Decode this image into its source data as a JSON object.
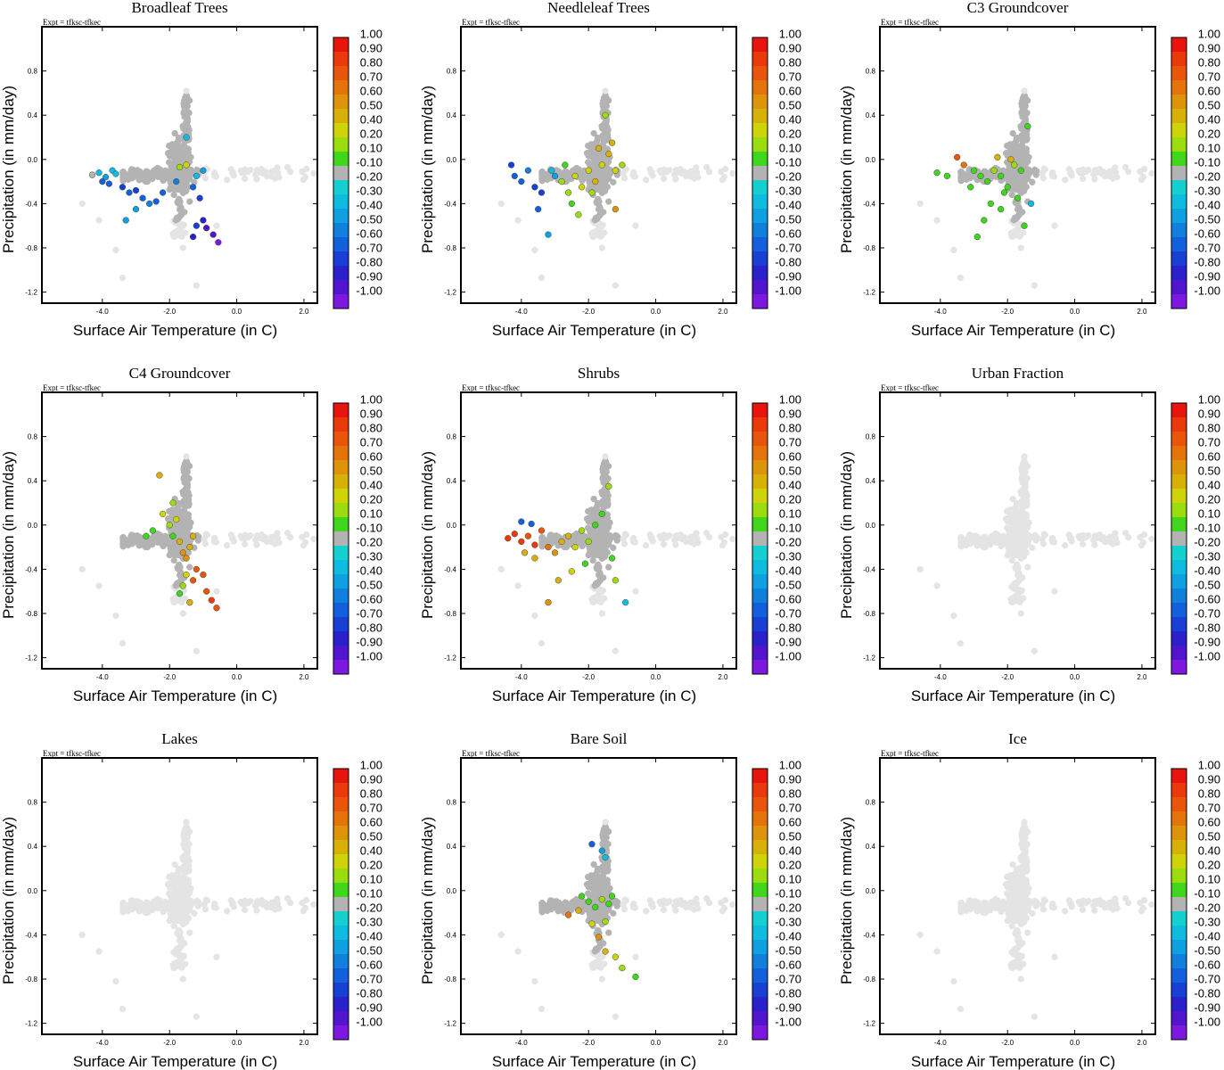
{
  "figure": {
    "expt_label": "Expt = tfksc-tfkec",
    "xlabel": "Surface Air Temperature (in C)",
    "ylabel": "Precipitation (in mm/day)",
    "x_ticks": [
      "-4.0",
      "-2.0",
      "0.0",
      "2.0"
    ],
    "y_ticks": [
      "0.8",
      "0.4",
      "0.0",
      "-0.4",
      "-0.8",
      "-1.2"
    ]
  },
  "colorbar": {
    "labels": [
      "1.00",
      "0.90",
      "0.80",
      "0.70",
      "0.60",
      "0.50",
      "0.40",
      "0.20",
      "0.10",
      "-0.10",
      "-0.20",
      "-0.30",
      "-0.40",
      "-0.50",
      "-0.60",
      "-0.70",
      "-0.80",
      "-0.90",
      "-1.00"
    ],
    "colors": [
      "#e8150f",
      "#ea3a0c",
      "#e9560b",
      "#e4740a",
      "#dd930a",
      "#d7b008",
      "#cfd40a",
      "#9bdc0e",
      "#3fd61c",
      "#b3b3b3",
      "#15d0d0",
      "#10bbe0",
      "#0ea0e0",
      "#1180dc",
      "#1360dc",
      "#1840d4",
      "#2a20cc",
      "#5015cc",
      "#7c18e0"
    ],
    "grey": "#b3b3b3",
    "light_grey": "#e4e4e4"
  },
  "chart_data": [
    {
      "type": "scatter",
      "title": "Broadleaf Trees",
      "xlim": [
        -5.8,
        2.4
      ],
      "ylim": [
        -1.3,
        1.2
      ],
      "colored_points": [
        {
          "x": -4.3,
          "y": -0.14,
          "c": 0.0
        },
        {
          "x": -4.1,
          "y": -0.12,
          "c": -0.2
        },
        {
          "x": -3.9,
          "y": -0.16,
          "c": -0.3
        },
        {
          "x": -3.7,
          "y": -0.1,
          "c": -0.2
        },
        {
          "x": -3.6,
          "y": -0.13,
          "c": -0.25
        },
        {
          "x": -4.0,
          "y": -0.2,
          "c": -0.5
        },
        {
          "x": -3.8,
          "y": -0.22,
          "c": -0.6
        },
        {
          "x": -3.4,
          "y": -0.25,
          "c": -0.7
        },
        {
          "x": -3.2,
          "y": -0.3,
          "c": -0.6
        },
        {
          "x": -3.0,
          "y": -0.28,
          "c": -0.7
        },
        {
          "x": -2.8,
          "y": -0.35,
          "c": -0.5
        },
        {
          "x": -3.0,
          "y": -0.45,
          "c": -0.3
        },
        {
          "x": -3.3,
          "y": -0.55,
          "c": -0.3
        },
        {
          "x": -2.6,
          "y": -0.4,
          "c": -0.4
        },
        {
          "x": -1.7,
          "y": -0.07,
          "c": 0.2
        },
        {
          "x": -1.5,
          "y": -0.05,
          "c": 0.3
        },
        {
          "x": -1.3,
          "y": -0.25,
          "c": -0.6
        },
        {
          "x": -1.1,
          "y": -0.35,
          "c": -0.7
        },
        {
          "x": -1.0,
          "y": -0.55,
          "c": -0.8
        },
        {
          "x": -0.9,
          "y": -0.62,
          "c": -0.85
        },
        {
          "x": -0.7,
          "y": -0.68,
          "c": -0.9
        },
        {
          "x": -0.55,
          "y": -0.75,
          "c": -0.95
        },
        {
          "x": -1.3,
          "y": -0.7,
          "c": -0.75
        },
        {
          "x": -1.2,
          "y": -0.6,
          "c": -0.65
        },
        {
          "x": -1.0,
          "y": -0.1,
          "c": -0.3
        },
        {
          "x": -1.2,
          "y": -0.15,
          "c": -0.2
        },
        {
          "x": -1.8,
          "y": -0.2,
          "c": -0.4
        },
        {
          "x": -2.2,
          "y": -0.3,
          "c": -0.5
        },
        {
          "x": -2.4,
          "y": -0.38,
          "c": -0.6
        },
        {
          "x": -1.5,
          "y": 0.2,
          "c": -0.2
        }
      ]
    },
    {
      "type": "scatter",
      "title": "Needleleaf Trees",
      "xlim": [
        -5.8,
        2.4
      ],
      "ylim": [
        -1.3,
        1.2
      ],
      "colored_points": [
        {
          "x": -4.3,
          "y": -0.05,
          "c": -0.7
        },
        {
          "x": -4.2,
          "y": -0.15,
          "c": -0.6
        },
        {
          "x": -4.0,
          "y": -0.2,
          "c": -0.5
        },
        {
          "x": -3.8,
          "y": -0.1,
          "c": -0.4
        },
        {
          "x": -3.6,
          "y": -0.25,
          "c": -0.65
        },
        {
          "x": -3.4,
          "y": -0.3,
          "c": -0.7
        },
        {
          "x": -3.5,
          "y": -0.45,
          "c": -0.5
        },
        {
          "x": -3.2,
          "y": -0.68,
          "c": -0.3
        },
        {
          "x": -3.0,
          "y": -0.15,
          "c": -0.3
        },
        {
          "x": -2.8,
          "y": -0.2,
          "c": 0.2
        },
        {
          "x": -2.6,
          "y": -0.3,
          "c": 0.25
        },
        {
          "x": -2.4,
          "y": -0.15,
          "c": 0.35
        },
        {
          "x": -2.2,
          "y": -0.25,
          "c": 0.3
        },
        {
          "x": -2.0,
          "y": -0.1,
          "c": 0.3
        },
        {
          "x": -1.8,
          "y": -0.2,
          "c": 0.4
        },
        {
          "x": -1.6,
          "y": -0.05,
          "c": 0.35
        },
        {
          "x": -1.4,
          "y": 0.05,
          "c": 0.45
        },
        {
          "x": -1.3,
          "y": 0.15,
          "c": 0.4
        },
        {
          "x": -1.2,
          "y": -0.1,
          "c": 0.3
        },
        {
          "x": -1.5,
          "y": 0.4,
          "c": 0.2
        },
        {
          "x": -2.5,
          "y": -0.4,
          "c": 0.15
        },
        {
          "x": -2.3,
          "y": -0.5,
          "c": 0.2
        },
        {
          "x": -1.2,
          "y": -0.45,
          "c": 0.6
        },
        {
          "x": -1.9,
          "y": -0.3,
          "c": 0.25
        },
        {
          "x": -1.0,
          "y": -0.05,
          "c": 0.2
        },
        {
          "x": -2.7,
          "y": -0.05,
          "c": 0.1
        },
        {
          "x": -3.1,
          "y": -0.1,
          "c": -0.2
        },
        {
          "x": -1.7,
          "y": 0.1,
          "c": 0.5
        }
      ]
    },
    {
      "type": "scatter",
      "title": "C3 Groundcover",
      "xlim": [
        -5.8,
        2.4
      ],
      "ylim": [
        -1.3,
        1.2
      ],
      "colored_points": [
        {
          "x": -3.5,
          "y": 0.02,
          "c": 0.75
        },
        {
          "x": -3.3,
          "y": -0.05,
          "c": 0.7
        },
        {
          "x": -3.0,
          "y": -0.1,
          "c": 0.15
        },
        {
          "x": -2.8,
          "y": -0.15,
          "c": 0.15
        },
        {
          "x": -2.6,
          "y": -0.2,
          "c": 0.1
        },
        {
          "x": -2.4,
          "y": -0.1,
          "c": 0.2
        },
        {
          "x": -2.2,
          "y": -0.15,
          "c": 0.15
        },
        {
          "x": -2.0,
          "y": -0.25,
          "c": 0.1
        },
        {
          "x": -1.8,
          "y": -0.05,
          "c": 0.2
        },
        {
          "x": -1.6,
          "y": -0.1,
          "c": 0.15
        },
        {
          "x": -3.8,
          "y": -0.15,
          "c": 0.1
        },
        {
          "x": -4.1,
          "y": -0.12,
          "c": 0.1
        },
        {
          "x": -2.5,
          "y": -0.4,
          "c": 0.1
        },
        {
          "x": -2.2,
          "y": -0.45,
          "c": 0.15
        },
        {
          "x": -2.7,
          "y": -0.55,
          "c": 0.1
        },
        {
          "x": -2.9,
          "y": -0.7,
          "c": 0.1
        },
        {
          "x": -1.4,
          "y": 0.3,
          "c": 0.1
        },
        {
          "x": -1.5,
          "y": -0.6,
          "c": 0.1
        },
        {
          "x": -2.3,
          "y": 0.02,
          "c": 0.5
        },
        {
          "x": -1.9,
          "y": 0.0,
          "c": 0.4
        },
        {
          "x": -1.3,
          "y": -0.4,
          "c": -0.2
        },
        {
          "x": -2.1,
          "y": -0.3,
          "c": 0.1
        },
        {
          "x": -1.7,
          "y": -0.35,
          "c": 0.1
        },
        {
          "x": -3.1,
          "y": -0.25,
          "c": 0.1
        }
      ]
    },
    {
      "type": "scatter",
      "title": "C4 Groundcover",
      "xlim": [
        -5.8,
        2.4
      ],
      "ylim": [
        -1.3,
        1.2
      ],
      "colored_points": [
        {
          "x": -2.3,
          "y": 0.45,
          "c": 0.5
        },
        {
          "x": -2.2,
          "y": 0.1,
          "c": 0.35
        },
        {
          "x": -2.0,
          "y": 0.0,
          "c": 0.2
        },
        {
          "x": -1.9,
          "y": -0.1,
          "c": 0.15
        },
        {
          "x": -1.8,
          "y": 0.05,
          "c": 0.3
        },
        {
          "x": -1.7,
          "y": -0.15,
          "c": 0.45
        },
        {
          "x": -1.6,
          "y": -0.25,
          "c": 0.55
        },
        {
          "x": -1.5,
          "y": -0.3,
          "c": 0.6
        },
        {
          "x": -1.4,
          "y": -0.2,
          "c": 0.5
        },
        {
          "x": -1.3,
          "y": -0.1,
          "c": 0.4
        },
        {
          "x": -1.2,
          "y": -0.4,
          "c": 0.8
        },
        {
          "x": -1.0,
          "y": -0.45,
          "c": 0.8
        },
        {
          "x": -0.9,
          "y": -0.6,
          "c": 0.8
        },
        {
          "x": -0.75,
          "y": -0.68,
          "c": 0.85
        },
        {
          "x": -0.6,
          "y": -0.75,
          "c": 0.8
        },
        {
          "x": -1.4,
          "y": -0.7,
          "c": 0.5
        },
        {
          "x": -1.6,
          "y": -0.55,
          "c": 0.2
        },
        {
          "x": -1.7,
          "y": -0.62,
          "c": 0.15
        },
        {
          "x": -2.5,
          "y": -0.05,
          "c": 0.15
        },
        {
          "x": -2.7,
          "y": -0.1,
          "c": 0.1
        },
        {
          "x": -1.9,
          "y": 0.2,
          "c": 0.2
        },
        {
          "x": -1.5,
          "y": -0.45,
          "c": 0.3
        },
        {
          "x": -1.3,
          "y": -0.5,
          "c": 0.75
        }
      ]
    },
    {
      "type": "scatter",
      "title": "Shrubs",
      "xlim": [
        -5.8,
        2.4
      ],
      "ylim": [
        -1.3,
        1.2
      ],
      "colored_points": [
        {
          "x": -4.4,
          "y": -0.12,
          "c": 0.9
        },
        {
          "x": -4.2,
          "y": -0.08,
          "c": 0.85
        },
        {
          "x": -4.0,
          "y": -0.15,
          "c": 0.9
        },
        {
          "x": -3.8,
          "y": -0.1,
          "c": 0.8
        },
        {
          "x": -3.6,
          "y": -0.18,
          "c": 0.85
        },
        {
          "x": -3.4,
          "y": -0.05,
          "c": 0.75
        },
        {
          "x": -3.2,
          "y": -0.2,
          "c": 0.7
        },
        {
          "x": -3.0,
          "y": -0.25,
          "c": 0.6
        },
        {
          "x": -2.8,
          "y": -0.15,
          "c": 0.5
        },
        {
          "x": -2.6,
          "y": -0.1,
          "c": 0.4
        },
        {
          "x": -2.4,
          "y": -0.2,
          "c": 0.3
        },
        {
          "x": -2.2,
          "y": -0.05,
          "c": 0.2
        },
        {
          "x": -2.0,
          "y": -0.15,
          "c": 0.2
        },
        {
          "x": -1.8,
          "y": 0.0,
          "c": 0.15
        },
        {
          "x": -1.6,
          "y": 0.1,
          "c": 0.15
        },
        {
          "x": -1.4,
          "y": 0.35,
          "c": 0.2
        },
        {
          "x": -1.3,
          "y": -0.3,
          "c": 0.1
        },
        {
          "x": -1.2,
          "y": -0.5,
          "c": 0.2
        },
        {
          "x": -0.9,
          "y": -0.7,
          "c": -0.2
        },
        {
          "x": -3.6,
          "y": -0.3,
          "c": 0.4
        },
        {
          "x": -3.2,
          "y": -0.7,
          "c": 0.6
        },
        {
          "x": -2.9,
          "y": -0.5,
          "c": 0.4
        },
        {
          "x": -2.5,
          "y": -0.42,
          "c": 0.3
        },
        {
          "x": -3.9,
          "y": -0.25,
          "c": 0.5
        },
        {
          "x": -4.0,
          "y": 0.03,
          "c": -0.6
        },
        {
          "x": -3.7,
          "y": 0.01,
          "c": -0.5
        },
        {
          "x": -2.1,
          "y": -0.35,
          "c": 0.15
        }
      ]
    },
    {
      "type": "scatter",
      "title": "Urban Fraction",
      "xlim": [
        -5.8,
        2.4
      ],
      "ylim": [
        -1.3,
        1.2
      ],
      "colored_points": []
    },
    {
      "type": "scatter",
      "title": "Lakes",
      "xlim": [
        -5.8,
        2.4
      ],
      "ylim": [
        -1.3,
        1.2
      ],
      "colored_points": []
    },
    {
      "type": "scatter",
      "title": "Bare Soil",
      "xlim": [
        -5.8,
        2.4
      ],
      "ylim": [
        -1.3,
        1.2
      ],
      "colored_points": [
        {
          "x": -1.9,
          "y": 0.42,
          "c": -0.6
        },
        {
          "x": -1.6,
          "y": 0.36,
          "c": -0.3
        },
        {
          "x": -1.5,
          "y": 0.3,
          "c": -0.2
        },
        {
          "x": -2.2,
          "y": -0.05,
          "c": 0.15
        },
        {
          "x": -2.0,
          "y": -0.1,
          "c": 0.1
        },
        {
          "x": -1.8,
          "y": -0.15,
          "c": 0.15
        },
        {
          "x": -1.6,
          "y": -0.08,
          "c": 0.2
        },
        {
          "x": -1.4,
          "y": -0.12,
          "c": 0.15
        },
        {
          "x": -1.3,
          "y": -0.05,
          "c": 0.1
        },
        {
          "x": -2.6,
          "y": -0.22,
          "c": 0.7
        },
        {
          "x": -2.3,
          "y": -0.18,
          "c": 0.5
        },
        {
          "x": -1.9,
          "y": -0.3,
          "c": 0.3
        },
        {
          "x": -1.7,
          "y": -0.42,
          "c": 0.55
        },
        {
          "x": -1.5,
          "y": -0.55,
          "c": 0.4
        },
        {
          "x": -1.2,
          "y": -0.6,
          "c": 0.3
        },
        {
          "x": -1.0,
          "y": -0.7,
          "c": 0.2
        },
        {
          "x": -0.6,
          "y": -0.78,
          "c": 0.15
        },
        {
          "x": -1.5,
          "y": -0.28,
          "c": 0.25
        }
      ]
    },
    {
      "type": "scatter",
      "title": "Ice",
      "xlim": [
        -5.8,
        2.4
      ],
      "ylim": [
        -1.3,
        1.2
      ],
      "colored_points": []
    }
  ]
}
